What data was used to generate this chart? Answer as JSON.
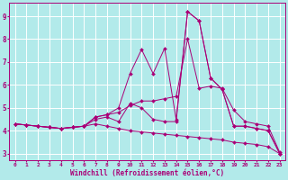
{
  "bg_color": "#b2eaea",
  "line_color": "#aa0077",
  "grid_color": "#ffffff",
  "xlim": [
    -0.5,
    23.5
  ],
  "ylim": [
    2.7,
    9.6
  ],
  "xticks": [
    0,
    1,
    2,
    3,
    4,
    5,
    6,
    7,
    8,
    9,
    10,
    11,
    12,
    13,
    14,
    15,
    16,
    17,
    18,
    19,
    20,
    21,
    22,
    23
  ],
  "yticks": [
    3,
    4,
    5,
    6,
    7,
    8,
    9
  ],
  "xlabel": "Windchill (Refroidissement éolien,°C)",
  "series": [
    [
      4.3,
      4.25,
      4.2,
      4.15,
      4.1,
      4.15,
      4.2,
      4.5,
      4.6,
      4.4,
      5.2,
      5.0,
      4.5,
      4.4,
      4.4,
      9.2,
      8.8,
      6.3,
      5.8,
      4.2,
      4.2,
      4.1,
      4.0,
      3.0
    ],
    [
      4.3,
      4.25,
      4.2,
      4.15,
      4.1,
      4.15,
      4.2,
      4.6,
      4.7,
      4.8,
      5.1,
      5.3,
      5.3,
      5.4,
      5.5,
      8.0,
      5.85,
      5.95,
      5.85,
      4.9,
      4.4,
      4.3,
      4.2,
      3.05
    ],
    [
      4.3,
      4.25,
      4.2,
      4.15,
      4.1,
      4.15,
      4.2,
      4.3,
      4.2,
      4.1,
      4.0,
      3.95,
      3.9,
      3.85,
      3.8,
      3.75,
      3.7,
      3.65,
      3.6,
      3.5,
      3.45,
      3.4,
      3.3,
      3.0
    ],
    [
      4.3,
      4.25,
      4.2,
      4.15,
      4.1,
      4.15,
      4.2,
      4.6,
      4.7,
      5.0,
      6.5,
      7.55,
      6.5,
      7.6,
      4.5,
      9.2,
      8.8,
      6.3,
      5.8,
      4.2,
      4.2,
      4.1,
      4.0,
      3.0
    ]
  ]
}
